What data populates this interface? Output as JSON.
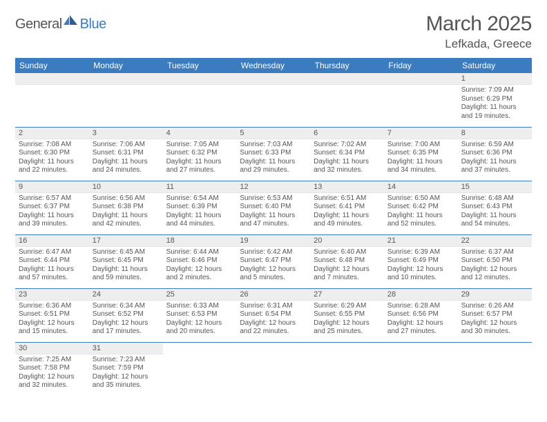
{
  "brand": {
    "general": "General",
    "blue": "Blue"
  },
  "title": "March 2025",
  "location": "Lefkada, Greece",
  "colors": {
    "accent": "#3b7bbf",
    "text": "#555555",
    "grayRow": "#eeeeee",
    "bg": "#ffffff"
  },
  "dayHeaders": [
    "Sunday",
    "Monday",
    "Tuesday",
    "Wednesday",
    "Thursday",
    "Friday",
    "Saturday"
  ],
  "weeks": [
    [
      null,
      null,
      null,
      null,
      null,
      null,
      {
        "n": "1",
        "sr": "Sunrise: 7:09 AM",
        "ss": "Sunset: 6:29 PM",
        "d1": "Daylight: 11 hours",
        "d2": "and 19 minutes."
      }
    ],
    [
      {
        "n": "2",
        "sr": "Sunrise: 7:08 AM",
        "ss": "Sunset: 6:30 PM",
        "d1": "Daylight: 11 hours",
        "d2": "and 22 minutes."
      },
      {
        "n": "3",
        "sr": "Sunrise: 7:06 AM",
        "ss": "Sunset: 6:31 PM",
        "d1": "Daylight: 11 hours",
        "d2": "and 24 minutes."
      },
      {
        "n": "4",
        "sr": "Sunrise: 7:05 AM",
        "ss": "Sunset: 6:32 PM",
        "d1": "Daylight: 11 hours",
        "d2": "and 27 minutes."
      },
      {
        "n": "5",
        "sr": "Sunrise: 7:03 AM",
        "ss": "Sunset: 6:33 PM",
        "d1": "Daylight: 11 hours",
        "d2": "and 29 minutes."
      },
      {
        "n": "6",
        "sr": "Sunrise: 7:02 AM",
        "ss": "Sunset: 6:34 PM",
        "d1": "Daylight: 11 hours",
        "d2": "and 32 minutes."
      },
      {
        "n": "7",
        "sr": "Sunrise: 7:00 AM",
        "ss": "Sunset: 6:35 PM",
        "d1": "Daylight: 11 hours",
        "d2": "and 34 minutes."
      },
      {
        "n": "8",
        "sr": "Sunrise: 6:59 AM",
        "ss": "Sunset: 6:36 PM",
        "d1": "Daylight: 11 hours",
        "d2": "and 37 minutes."
      }
    ],
    [
      {
        "n": "9",
        "sr": "Sunrise: 6:57 AM",
        "ss": "Sunset: 6:37 PM",
        "d1": "Daylight: 11 hours",
        "d2": "and 39 minutes."
      },
      {
        "n": "10",
        "sr": "Sunrise: 6:56 AM",
        "ss": "Sunset: 6:38 PM",
        "d1": "Daylight: 11 hours",
        "d2": "and 42 minutes."
      },
      {
        "n": "11",
        "sr": "Sunrise: 6:54 AM",
        "ss": "Sunset: 6:39 PM",
        "d1": "Daylight: 11 hours",
        "d2": "and 44 minutes."
      },
      {
        "n": "12",
        "sr": "Sunrise: 6:53 AM",
        "ss": "Sunset: 6:40 PM",
        "d1": "Daylight: 11 hours",
        "d2": "and 47 minutes."
      },
      {
        "n": "13",
        "sr": "Sunrise: 6:51 AM",
        "ss": "Sunset: 6:41 PM",
        "d1": "Daylight: 11 hours",
        "d2": "and 49 minutes."
      },
      {
        "n": "14",
        "sr": "Sunrise: 6:50 AM",
        "ss": "Sunset: 6:42 PM",
        "d1": "Daylight: 11 hours",
        "d2": "and 52 minutes."
      },
      {
        "n": "15",
        "sr": "Sunrise: 6:48 AM",
        "ss": "Sunset: 6:43 PM",
        "d1": "Daylight: 11 hours",
        "d2": "and 54 minutes."
      }
    ],
    [
      {
        "n": "16",
        "sr": "Sunrise: 6:47 AM",
        "ss": "Sunset: 6:44 PM",
        "d1": "Daylight: 11 hours",
        "d2": "and 57 minutes."
      },
      {
        "n": "17",
        "sr": "Sunrise: 6:45 AM",
        "ss": "Sunset: 6:45 PM",
        "d1": "Daylight: 11 hours",
        "d2": "and 59 minutes."
      },
      {
        "n": "18",
        "sr": "Sunrise: 6:44 AM",
        "ss": "Sunset: 6:46 PM",
        "d1": "Daylight: 12 hours",
        "d2": "and 2 minutes."
      },
      {
        "n": "19",
        "sr": "Sunrise: 6:42 AM",
        "ss": "Sunset: 6:47 PM",
        "d1": "Daylight: 12 hours",
        "d2": "and 5 minutes."
      },
      {
        "n": "20",
        "sr": "Sunrise: 6:40 AM",
        "ss": "Sunset: 6:48 PM",
        "d1": "Daylight: 12 hours",
        "d2": "and 7 minutes."
      },
      {
        "n": "21",
        "sr": "Sunrise: 6:39 AM",
        "ss": "Sunset: 6:49 PM",
        "d1": "Daylight: 12 hours",
        "d2": "and 10 minutes."
      },
      {
        "n": "22",
        "sr": "Sunrise: 6:37 AM",
        "ss": "Sunset: 6:50 PM",
        "d1": "Daylight: 12 hours",
        "d2": "and 12 minutes."
      }
    ],
    [
      {
        "n": "23",
        "sr": "Sunrise: 6:36 AM",
        "ss": "Sunset: 6:51 PM",
        "d1": "Daylight: 12 hours",
        "d2": "and 15 minutes."
      },
      {
        "n": "24",
        "sr": "Sunrise: 6:34 AM",
        "ss": "Sunset: 6:52 PM",
        "d1": "Daylight: 12 hours",
        "d2": "and 17 minutes."
      },
      {
        "n": "25",
        "sr": "Sunrise: 6:33 AM",
        "ss": "Sunset: 6:53 PM",
        "d1": "Daylight: 12 hours",
        "d2": "and 20 minutes."
      },
      {
        "n": "26",
        "sr": "Sunrise: 6:31 AM",
        "ss": "Sunset: 6:54 PM",
        "d1": "Daylight: 12 hours",
        "d2": "and 22 minutes."
      },
      {
        "n": "27",
        "sr": "Sunrise: 6:29 AM",
        "ss": "Sunset: 6:55 PM",
        "d1": "Daylight: 12 hours",
        "d2": "and 25 minutes."
      },
      {
        "n": "28",
        "sr": "Sunrise: 6:28 AM",
        "ss": "Sunset: 6:56 PM",
        "d1": "Daylight: 12 hours",
        "d2": "and 27 minutes."
      },
      {
        "n": "29",
        "sr": "Sunrise: 6:26 AM",
        "ss": "Sunset: 6:57 PM",
        "d1": "Daylight: 12 hours",
        "d2": "and 30 minutes."
      }
    ],
    [
      {
        "n": "30",
        "sr": "Sunrise: 7:25 AM",
        "ss": "Sunset: 7:58 PM",
        "d1": "Daylight: 12 hours",
        "d2": "and 32 minutes."
      },
      {
        "n": "31",
        "sr": "Sunrise: 7:23 AM",
        "ss": "Sunset: 7:59 PM",
        "d1": "Daylight: 12 hours",
        "d2": "and 35 minutes."
      },
      null,
      null,
      null,
      null,
      null
    ]
  ]
}
